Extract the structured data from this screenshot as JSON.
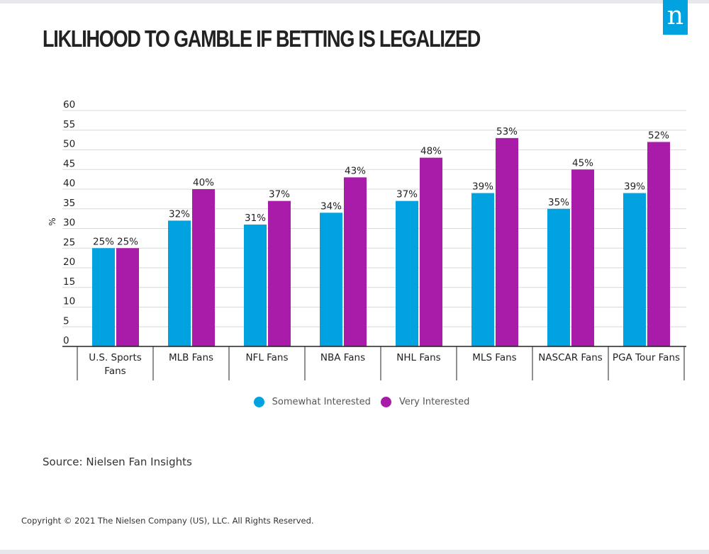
{
  "header": {
    "title": "LIKLIHOOD TO GAMBLE IF BETTING IS LEGALIZED",
    "logo_text": "n",
    "logo_color": "#00a3e0"
  },
  "chart_data": {
    "type": "bar",
    "title": "LIKLIHOOD TO GAMBLE IF BETTING IS LEGALIZED",
    "ylabel": "%",
    "xlabel": "",
    "ylim": [
      0,
      60
    ],
    "yticks": [
      0,
      5,
      10,
      15,
      20,
      25,
      30,
      35,
      40,
      45,
      50,
      55,
      60
    ],
    "grid": true,
    "legend_position": "bottom",
    "categories": [
      [
        "U.S. Sports",
        "Fans"
      ],
      [
        "MLB Fans"
      ],
      [
        "NFL Fans"
      ],
      [
        "NBA Fans"
      ],
      [
        "NHL Fans"
      ],
      [
        "MLS Fans"
      ],
      [
        "NASCAR Fans"
      ],
      [
        "PGA Tour Fans"
      ]
    ],
    "series": [
      {
        "name": "Somewhat Interested",
        "color": "#00a3e0",
        "values": [
          25,
          32,
          31,
          34,
          37,
          39,
          35,
          39
        ],
        "labels": [
          "25%",
          "32%",
          "31%",
          "34%",
          "37%",
          "39%",
          "35%",
          "39%"
        ]
      },
      {
        "name": "Very Interested",
        "color": "#a91ba9",
        "values": [
          25,
          40,
          37,
          43,
          48,
          53,
          45,
          52
        ],
        "labels": [
          "25%",
          "40%",
          "37%",
          "43%",
          "48%",
          "53%",
          "45%",
          "52%"
        ]
      }
    ]
  },
  "footer": {
    "source": "Source: Nielsen Fan Insights",
    "copyright": "Copyright © 2021 The Nielsen Company (US), LLC. All Rights Reserved."
  }
}
